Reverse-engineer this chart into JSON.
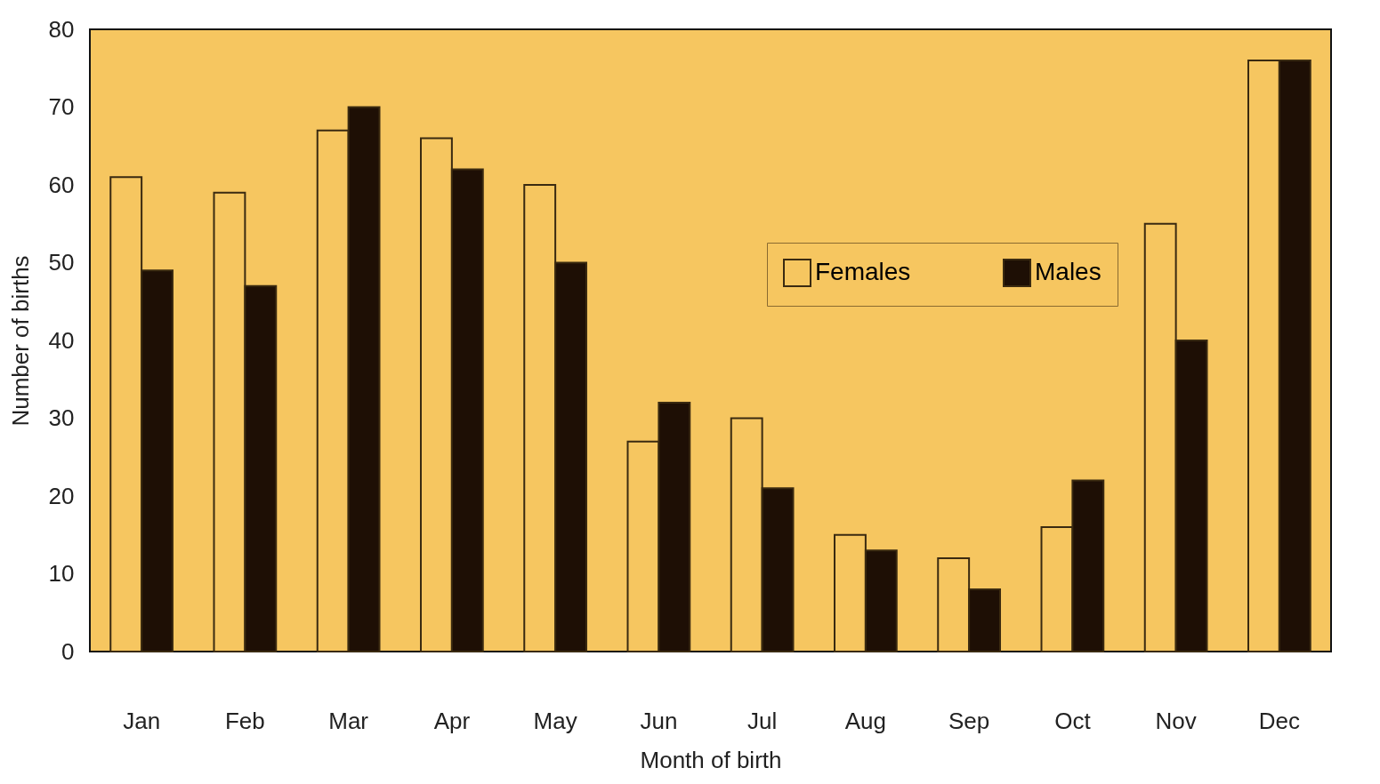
{
  "chart_data": {
    "type": "bar",
    "xlabel": "Month of birth",
    "ylabel": "Number of births",
    "categories": [
      "Jan",
      "Feb",
      "Mar",
      "Apr",
      "May",
      "Jun",
      "Jul",
      "Aug",
      "Sep",
      "Oct",
      "Nov",
      "Dec"
    ],
    "series": [
      {
        "name": "Females",
        "color": "#f6c660",
        "values": [
          61,
          59,
          67,
          66,
          60,
          27,
          30,
          15,
          12,
          16,
          55,
          76
        ]
      },
      {
        "name": "Males",
        "color": "#1e0f05",
        "values": [
          49,
          47,
          70,
          62,
          50,
          32,
          21,
          13,
          8,
          22,
          40,
          76
        ]
      }
    ],
    "ylim": [
      0,
      80
    ],
    "yticks": [
      0,
      10,
      20,
      30,
      40,
      50,
      60,
      70,
      80
    ],
    "grid": false,
    "legend": "top right"
  }
}
